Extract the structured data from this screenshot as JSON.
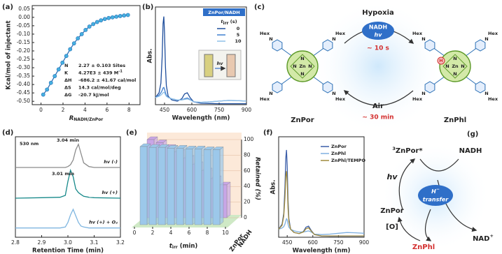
{
  "panel_labels": [
    "(a)",
    "(b)",
    "(c)",
    "(d)",
    "(e)",
    "(f)",
    "(g)"
  ],
  "chart_data": [
    {
      "type": "scatter",
      "ylabel": "Kcal/mol of injectant",
      "xlabel": {
        "main": "R",
        "sub": "NADH/ZnPor"
      },
      "x": [
        0.2,
        0.55,
        0.9,
        1.25,
        1.6,
        1.95,
        2.3,
        2.65,
        3.0,
        3.35,
        3.7,
        4.05,
        4.4,
        4.75,
        5.1,
        5.45,
        5.8,
        6.15,
        6.5,
        6.85,
        7.2,
        7.55,
        7.9
      ],
      "values": [
        -0.46,
        -0.43,
        -0.39,
        -0.35,
        -0.31,
        -0.27,
        -0.23,
        -0.19,
        -0.155,
        -0.125,
        -0.1,
        -0.075,
        -0.055,
        -0.04,
        -0.028,
        -0.018,
        -0.01,
        -0.004,
        0.0,
        0.004,
        0.008,
        0.011,
        0.014
      ],
      "color": "#45b0e0",
      "fit": true,
      "fit_color": "#2a6fb5",
      "xlim": [
        -0.8,
        9
      ],
      "xticks": [
        0,
        2,
        4,
        6,
        8
      ],
      "ylim": [
        -0.52,
        0.07
      ],
      "yticks": [
        {
          "value": 0.05,
          "label": "0.05"
        },
        {
          "value": 0,
          "label": "0.00"
        },
        {
          "value": -0.05,
          "label": "-0.05"
        },
        {
          "value": -0.1,
          "label": "-0.10"
        },
        {
          "value": -0.15,
          "label": "-0.15"
        },
        {
          "value": -0.2,
          "label": "-0.20"
        },
        {
          "value": -0.25,
          "label": "-0.25"
        },
        {
          "value": -0.3,
          "label": "-0.30"
        },
        {
          "value": -0.35,
          "label": "-0.35"
        },
        {
          "value": -0.4,
          "label": "-0.40"
        },
        {
          "value": -0.45,
          "label": "-0.45"
        },
        {
          "value": -0.5,
          "label": "-0.50"
        }
      ],
      "annotations": [
        {
          "key": "N",
          "text": "2.27 ± 0.103 Sites"
        },
        {
          "key": "K",
          "text": "4.27E3 ± 439 M",
          "sup": "-1"
        },
        {
          "key": "ΔH",
          "text": "-686.2 ± 41.67 cal/mol"
        },
        {
          "key": "ΔS",
          "text": "14.3 cal/mol/deg"
        },
        {
          "key": "ΔG",
          "text": "-20.7 kJ/mol"
        }
      ]
    },
    {
      "type": "line",
      "ylabel": "Abs.",
      "xlabel": "Wavelength (nm)",
      "x": [
        400,
        420,
        430,
        437,
        442,
        446,
        450,
        455,
        460,
        470,
        490,
        520,
        545,
        560,
        575,
        590,
        610,
        650,
        700,
        750,
        800,
        850,
        900
      ],
      "series": [
        {
          "name": "0",
          "color": "#1f4e9c",
          "values": [
            0.3,
            0.5,
            0.9,
            2.0,
            3.4,
            3.7,
            3.0,
            1.6,
            0.8,
            0.35,
            0.2,
            0.15,
            0.25,
            0.45,
            0.5,
            0.3,
            0.12,
            0.06,
            0.05,
            0.04,
            0.04,
            0.04,
            0.04
          ]
        },
        {
          "name": "5",
          "color": "#3f7fd0",
          "values": [
            0.3,
            0.4,
            0.5,
            0.6,
            0.7,
            0.72,
            0.65,
            0.5,
            0.4,
            0.3,
            0.25,
            0.2,
            0.2,
            0.25,
            0.28,
            0.22,
            0.12,
            0.1,
            0.12,
            0.15,
            0.18,
            0.17,
            0.15
          ]
        },
        {
          "name": "10",
          "color": "#8fc0e8",
          "values": [
            0.3,
            0.35,
            0.4,
            0.45,
            0.5,
            0.52,
            0.5,
            0.42,
            0.35,
            0.3,
            0.25,
            0.2,
            0.2,
            0.22,
            0.24,
            0.2,
            0.12,
            0.1,
            0.12,
            0.15,
            0.18,
            0.17,
            0.15
          ]
        }
      ],
      "xlim": [
        400,
        900
      ],
      "xticks": [
        450,
        600,
        750,
        900
      ],
      "ylim": [
        0,
        4.1
      ],
      "legend_box": "ZnPor/NADH",
      "legend_title": {
        "main": "t",
        "sub": "irr",
        "unit": " (s)"
      },
      "inset_label": "hv"
    },
    {
      "type": "line",
      "xlabel": "Retention Time (min)",
      "x": [
        2.8,
        2.9,
        2.97,
        2.99,
        3.0,
        3.01,
        3.02,
        3.03,
        3.04,
        3.05,
        3.06,
        3.08,
        3.1,
        3.2
      ],
      "series": [
        {
          "name": "hv (-)",
          "color": "#8c8c8c",
          "values": [
            7.5,
            7.5,
            7.5,
            7.5,
            7.6,
            7.8,
            8.3,
            9.4,
            10.0,
            9.0,
            8.0,
            7.6,
            7.5,
            7.5
          ]
        },
        {
          "name": "hv (+)",
          "color": "#17898a",
          "values": [
            4.2,
            4.25,
            4.3,
            4.5,
            6.0,
            7.2,
            6.5,
            5.2,
            4.8,
            4.6,
            4.4,
            4.3,
            4.25,
            4.2
          ]
        },
        {
          "name": "hv (+) + O₂",
          "color": "#7fb6e0",
          "values": [
            1.0,
            1.0,
            1.0,
            1.1,
            1.6,
            2.4,
            3.0,
            2.3,
            1.6,
            1.2,
            1.1,
            1.0,
            1.0,
            1.0
          ]
        }
      ],
      "xlim": [
        2.8,
        3.2
      ],
      "xticks": [
        {
          "value": 2.8,
          "label": "2.8"
        },
        {
          "value": 2.9,
          "label": "2.9"
        },
        {
          "value": 3.0,
          "label": "3.0"
        },
        {
          "value": 3.1,
          "label": "3.1"
        },
        {
          "value": 3.2,
          "label": "3.2"
        }
      ],
      "ylim": [
        0,
        10.8
      ],
      "annotations": [
        {
          "text": "530 nm",
          "color": "#222"
        },
        {
          "text": "3.04 min",
          "color": "#2f6fc0"
        },
        {
          "text": "3.01 min",
          "color": "#2f6fc0"
        }
      ]
    },
    {
      "type": "bar3d",
      "ylabel": "Retained (%)",
      "xlabel": {
        "main": "t",
        "sub": "irr",
        "unit": " (min)"
      },
      "x": [
        1,
        2,
        3,
        4,
        5,
        6,
        7,
        8,
        9
      ],
      "series": [
        {
          "name": "ZnPor",
          "color": "#9cc8ea",
          "values": [
            100,
            99,
            99,
            98,
            98,
            97,
            97,
            96,
            96
          ]
        },
        {
          "name": "NADH",
          "color": "#c9a6e6",
          "values": [
            100,
            96,
            90,
            84,
            76,
            68,
            60,
            50,
            42
          ]
        }
      ],
      "xlim": [
        0,
        10
      ],
      "xticks": [
        0,
        2,
        4,
        6,
        8,
        10
      ],
      "ylim": [
        0,
        100
      ],
      "yticks": [
        0,
        20,
        40,
        60,
        80,
        100
      ]
    },
    {
      "type": "line",
      "ylabel": "Abs.",
      "xlabel": "Wavelength (nm)",
      "x": [
        400,
        420,
        430,
        437,
        442,
        446,
        450,
        455,
        460,
        470,
        490,
        520,
        545,
        560,
        575,
        590,
        610,
        650,
        700,
        750,
        800,
        850,
        900
      ],
      "series": [
        {
          "name": "ZnPor",
          "color": "#3b5da8",
          "values": [
            0.3,
            0.5,
            0.9,
            1.9,
            3.0,
            3.3,
            2.7,
            1.4,
            0.7,
            0.3,
            0.18,
            0.14,
            0.22,
            0.38,
            0.42,
            0.26,
            0.1,
            0.05,
            0.04,
            0.04,
            0.04,
            0.04,
            0.04
          ]
        },
        {
          "name": "ZnPhl",
          "color": "#7fb0e0",
          "values": [
            0.3,
            0.35,
            0.4,
            0.5,
            0.62,
            0.7,
            0.66,
            0.5,
            0.38,
            0.3,
            0.24,
            0.2,
            0.2,
            0.22,
            0.24,
            0.2,
            0.12,
            0.1,
            0.12,
            0.15,
            0.18,
            0.17,
            0.15
          ]
        },
        {
          "name": "ZnPhl/TEMPO",
          "color": "#a08a3c",
          "values": [
            0.3,
            0.45,
            0.8,
            1.5,
            2.3,
            2.5,
            2.1,
            1.1,
            0.6,
            0.3,
            0.18,
            0.14,
            0.2,
            0.32,
            0.36,
            0.24,
            0.1,
            0.05,
            0.05,
            0.05,
            0.05,
            0.05,
            0.05
          ]
        }
      ],
      "xlim": [
        400,
        900
      ],
      "xticks": [
        450,
        600,
        750,
        900
      ],
      "ylim": [
        0,
        3.8
      ]
    }
  ],
  "scheme_c": {
    "hypoxia": "Hypoxia",
    "reagent": "NADH",
    "light": "hv",
    "time_forward": "~ 10 s",
    "air": "Air",
    "time_back": "~ 30 min",
    "substituent": "Hex",
    "metal": "Zn",
    "nitrogen": "N",
    "hydride": "H",
    "left": "ZnPor",
    "right": "ZnPhl"
  },
  "scheme_g": {
    "excited_sup": "3",
    "excited": "ZnPor*",
    "donor": "NADH",
    "light": "hv",
    "transfer_ion": "H",
    "transfer_charge": "−",
    "transfer": "transfer",
    "ground": "ZnPor",
    "oxidant": "[O]",
    "product": "ZnPhl",
    "nad": "NAD",
    "nad_charge": "+"
  }
}
